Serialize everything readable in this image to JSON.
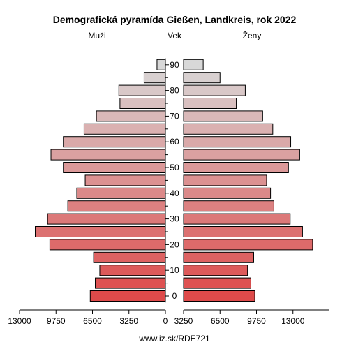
{
  "chart_data": {
    "type": "bar",
    "title": "Demografická pyramída Gießen, Landkreis, rok 2022",
    "left_label": "Muži",
    "center_label": "Vek",
    "right_label": "Ženy",
    "footer": "www.iz.sk/RDE721",
    "xlim": [
      0,
      13000
    ],
    "x_ticks": [
      "13000",
      "9750",
      "6500",
      "3250",
      "0",
      "3250",
      "6500",
      "9750",
      "13000"
    ],
    "age_ticks": [
      "0",
      "10",
      "20",
      "30",
      "40",
      "50",
      "60",
      "70",
      "80",
      "90"
    ],
    "age_groups": [
      "0-4",
      "5-9",
      "10-14",
      "15-19",
      "20-24",
      "25-29",
      "30-34",
      "35-39",
      "40-44",
      "45-49",
      "50-54",
      "55-59",
      "60-64",
      "65-69",
      "70-74",
      "75-79",
      "80-84",
      "85-89",
      "90+"
    ],
    "series": [
      {
        "name": "Muži",
        "values": [
          6700,
          6250,
          5850,
          6400,
          10300,
          11600,
          10500,
          8700,
          7900,
          7150,
          9100,
          10200,
          9100,
          7250,
          6150,
          4050,
          4150,
          1900,
          750
        ]
      },
      {
        "name": "Ženy",
        "values": [
          6350,
          6000,
          5700,
          6250,
          11500,
          10600,
          9500,
          8050,
          7750,
          7400,
          9350,
          10350,
          9550,
          7950,
          7050,
          4700,
          5500,
          3250,
          1750
        ]
      }
    ],
    "colors": {
      "bottom": "#de4a4a",
      "top": "#d8d8d8",
      "stroke": "#000000"
    }
  }
}
